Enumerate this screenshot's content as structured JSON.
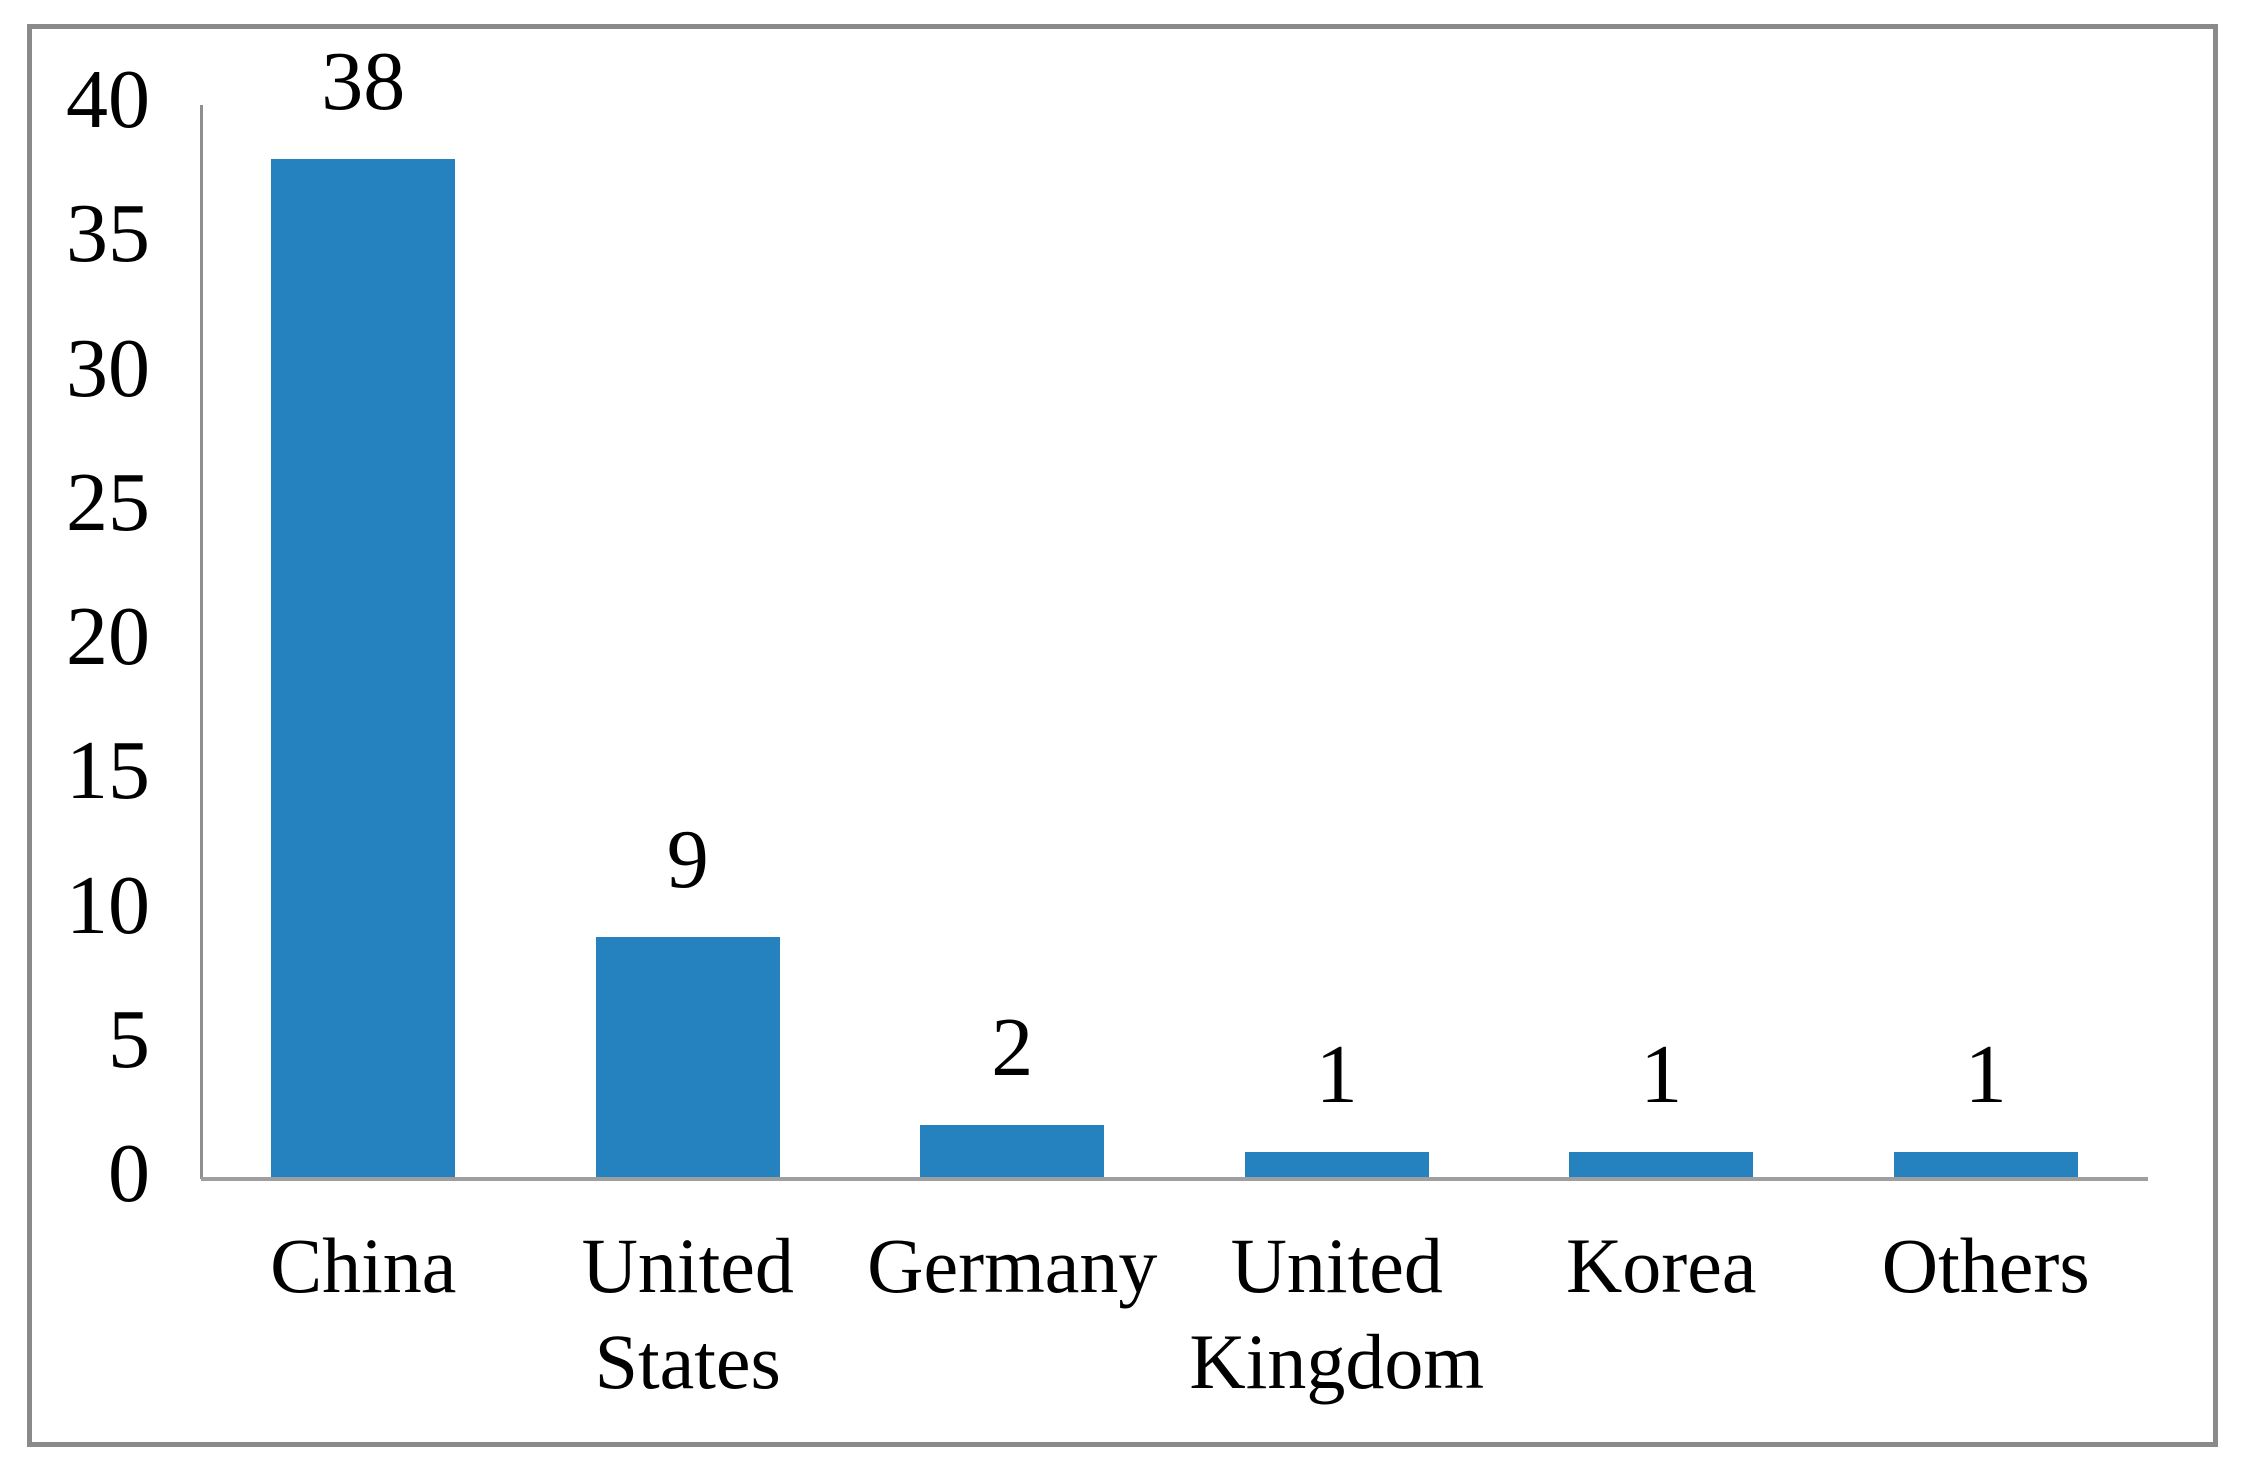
{
  "figure": {
    "kind": "bar-chart-figure",
    "background": "#ffffff"
  },
  "chart_data": {
    "type": "bar",
    "title": "",
    "xlabel": "",
    "ylabel": "",
    "categories": [
      "China",
      "United States",
      "Germany",
      "United Kingdom",
      "Korea",
      "Others"
    ],
    "values": [
      38,
      9,
      2,
      1,
      1,
      1
    ],
    "data_labels": [
      "38",
      "9",
      "2",
      "1",
      "1",
      "1"
    ],
    "ylim": [
      0,
      40
    ],
    "yticks": [
      0,
      5,
      10,
      15,
      20,
      25,
      30,
      35,
      40
    ],
    "grid": false,
    "legend_position": "none",
    "bar_color": "#2681BF",
    "axis_color": "#8F8F8F",
    "baseline_color": "#9E9E9E",
    "frame_color": "#8A8A8A",
    "text_color": "#000000"
  }
}
